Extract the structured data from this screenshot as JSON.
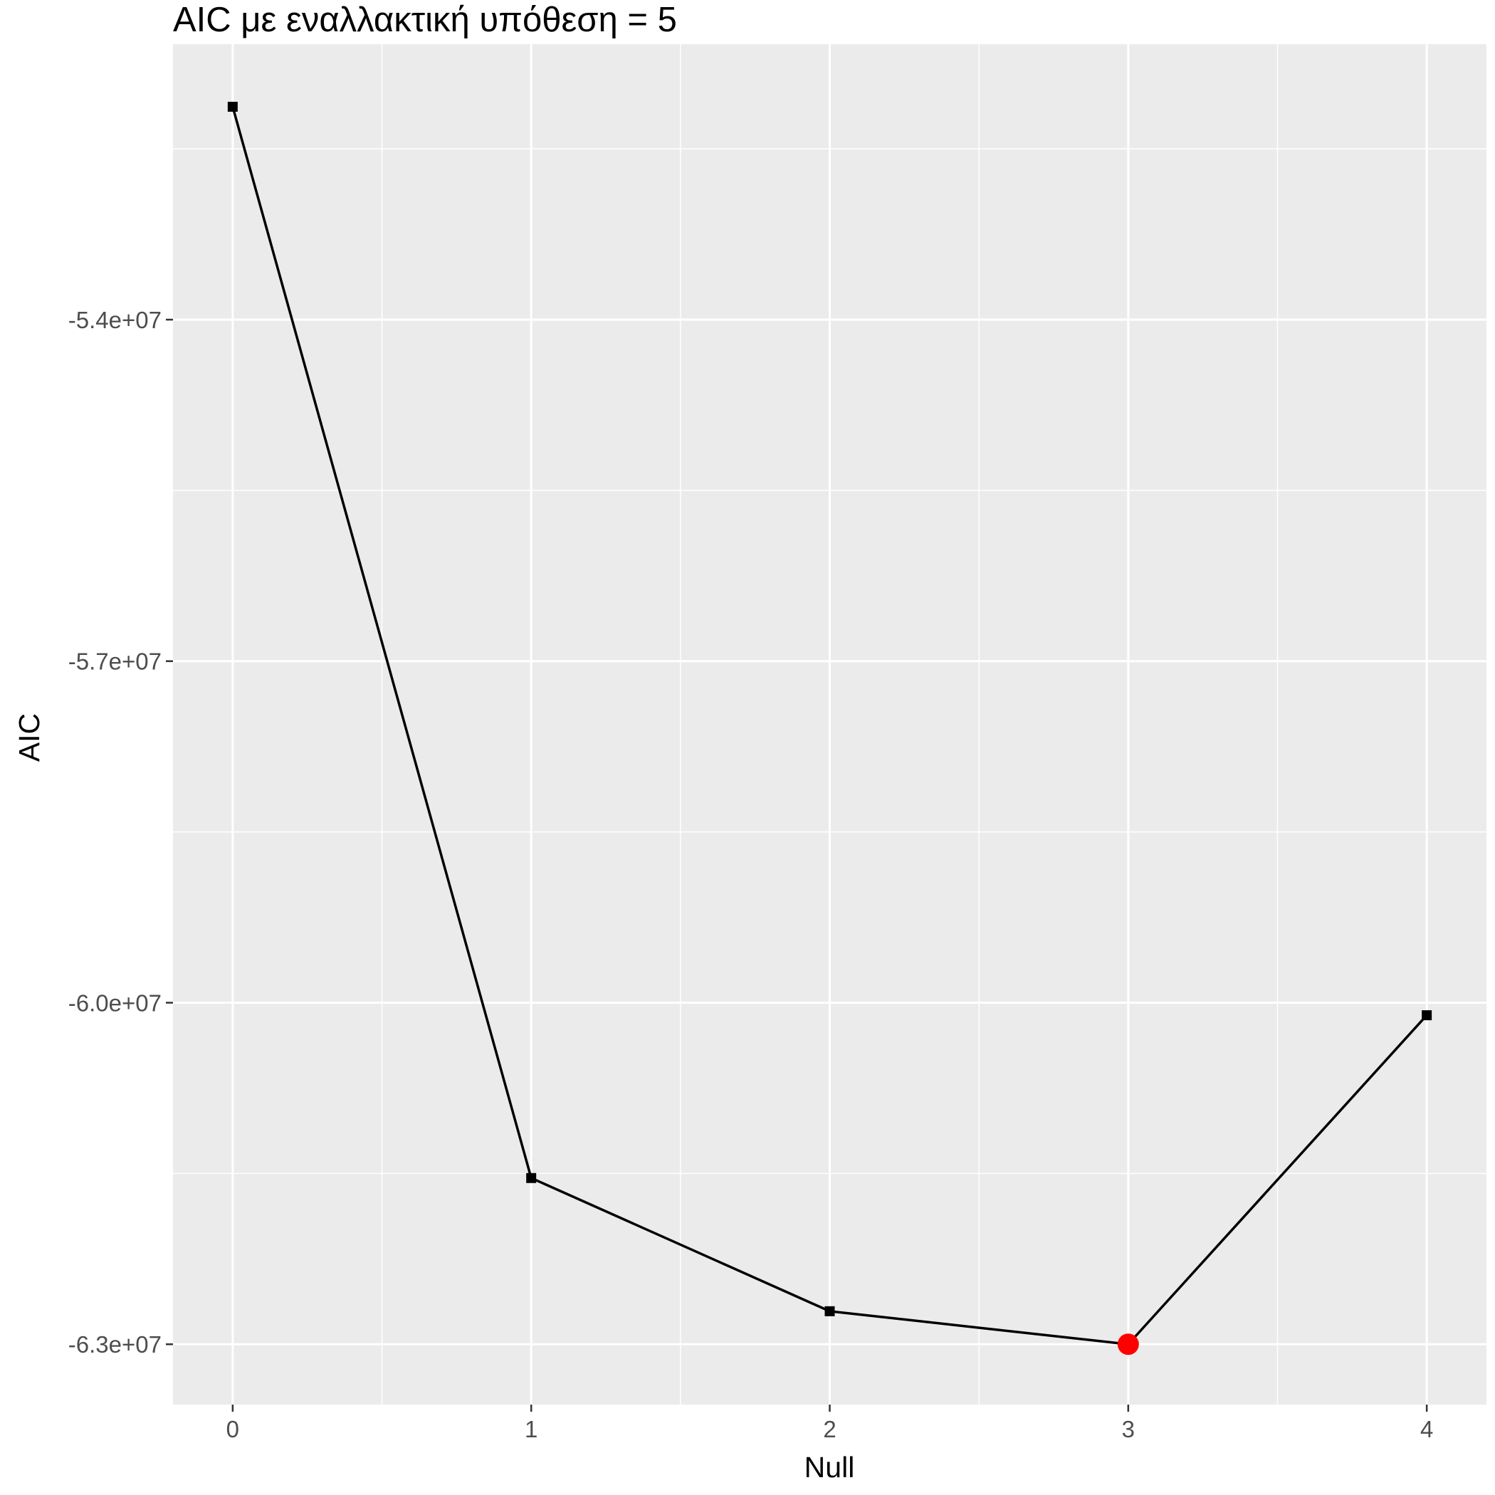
{
  "chart_data": {
    "type": "line",
    "title": "AIC με εναλλακτική υπόθεση =  5",
    "xlabel": "Null",
    "ylabel": "AIC",
    "x": [
      0,
      1,
      2,
      3,
      4
    ],
    "series": [
      {
        "values": [
          -52130000,
          -61540000,
          -62710000,
          -63000000,
          -60110000
        ]
      }
    ],
    "highlight": {
      "x": 3,
      "y": -63000000,
      "color": "#ff0000"
    },
    "x_ticks": [
      "0",
      "1",
      "2",
      "3",
      "4"
    ],
    "y_ticks": [
      {
        "value": -54000000,
        "label": "-5.4e+07"
      },
      {
        "value": -57000000,
        "label": "-5.7e+07"
      },
      {
        "value": -60000000,
        "label": "-6.0e+07"
      },
      {
        "value": -63000000,
        "label": "-6.3e+07"
      }
    ],
    "xlim": [
      -0.2,
      4.2
    ],
    "ylim": [
      -63530000,
      -51580000
    ],
    "grid": true,
    "colors": {
      "panel": "#ebebeb",
      "grid": "#ffffff",
      "line": "#000000",
      "marker": "#000000",
      "tick": "#4d4d4d"
    }
  }
}
